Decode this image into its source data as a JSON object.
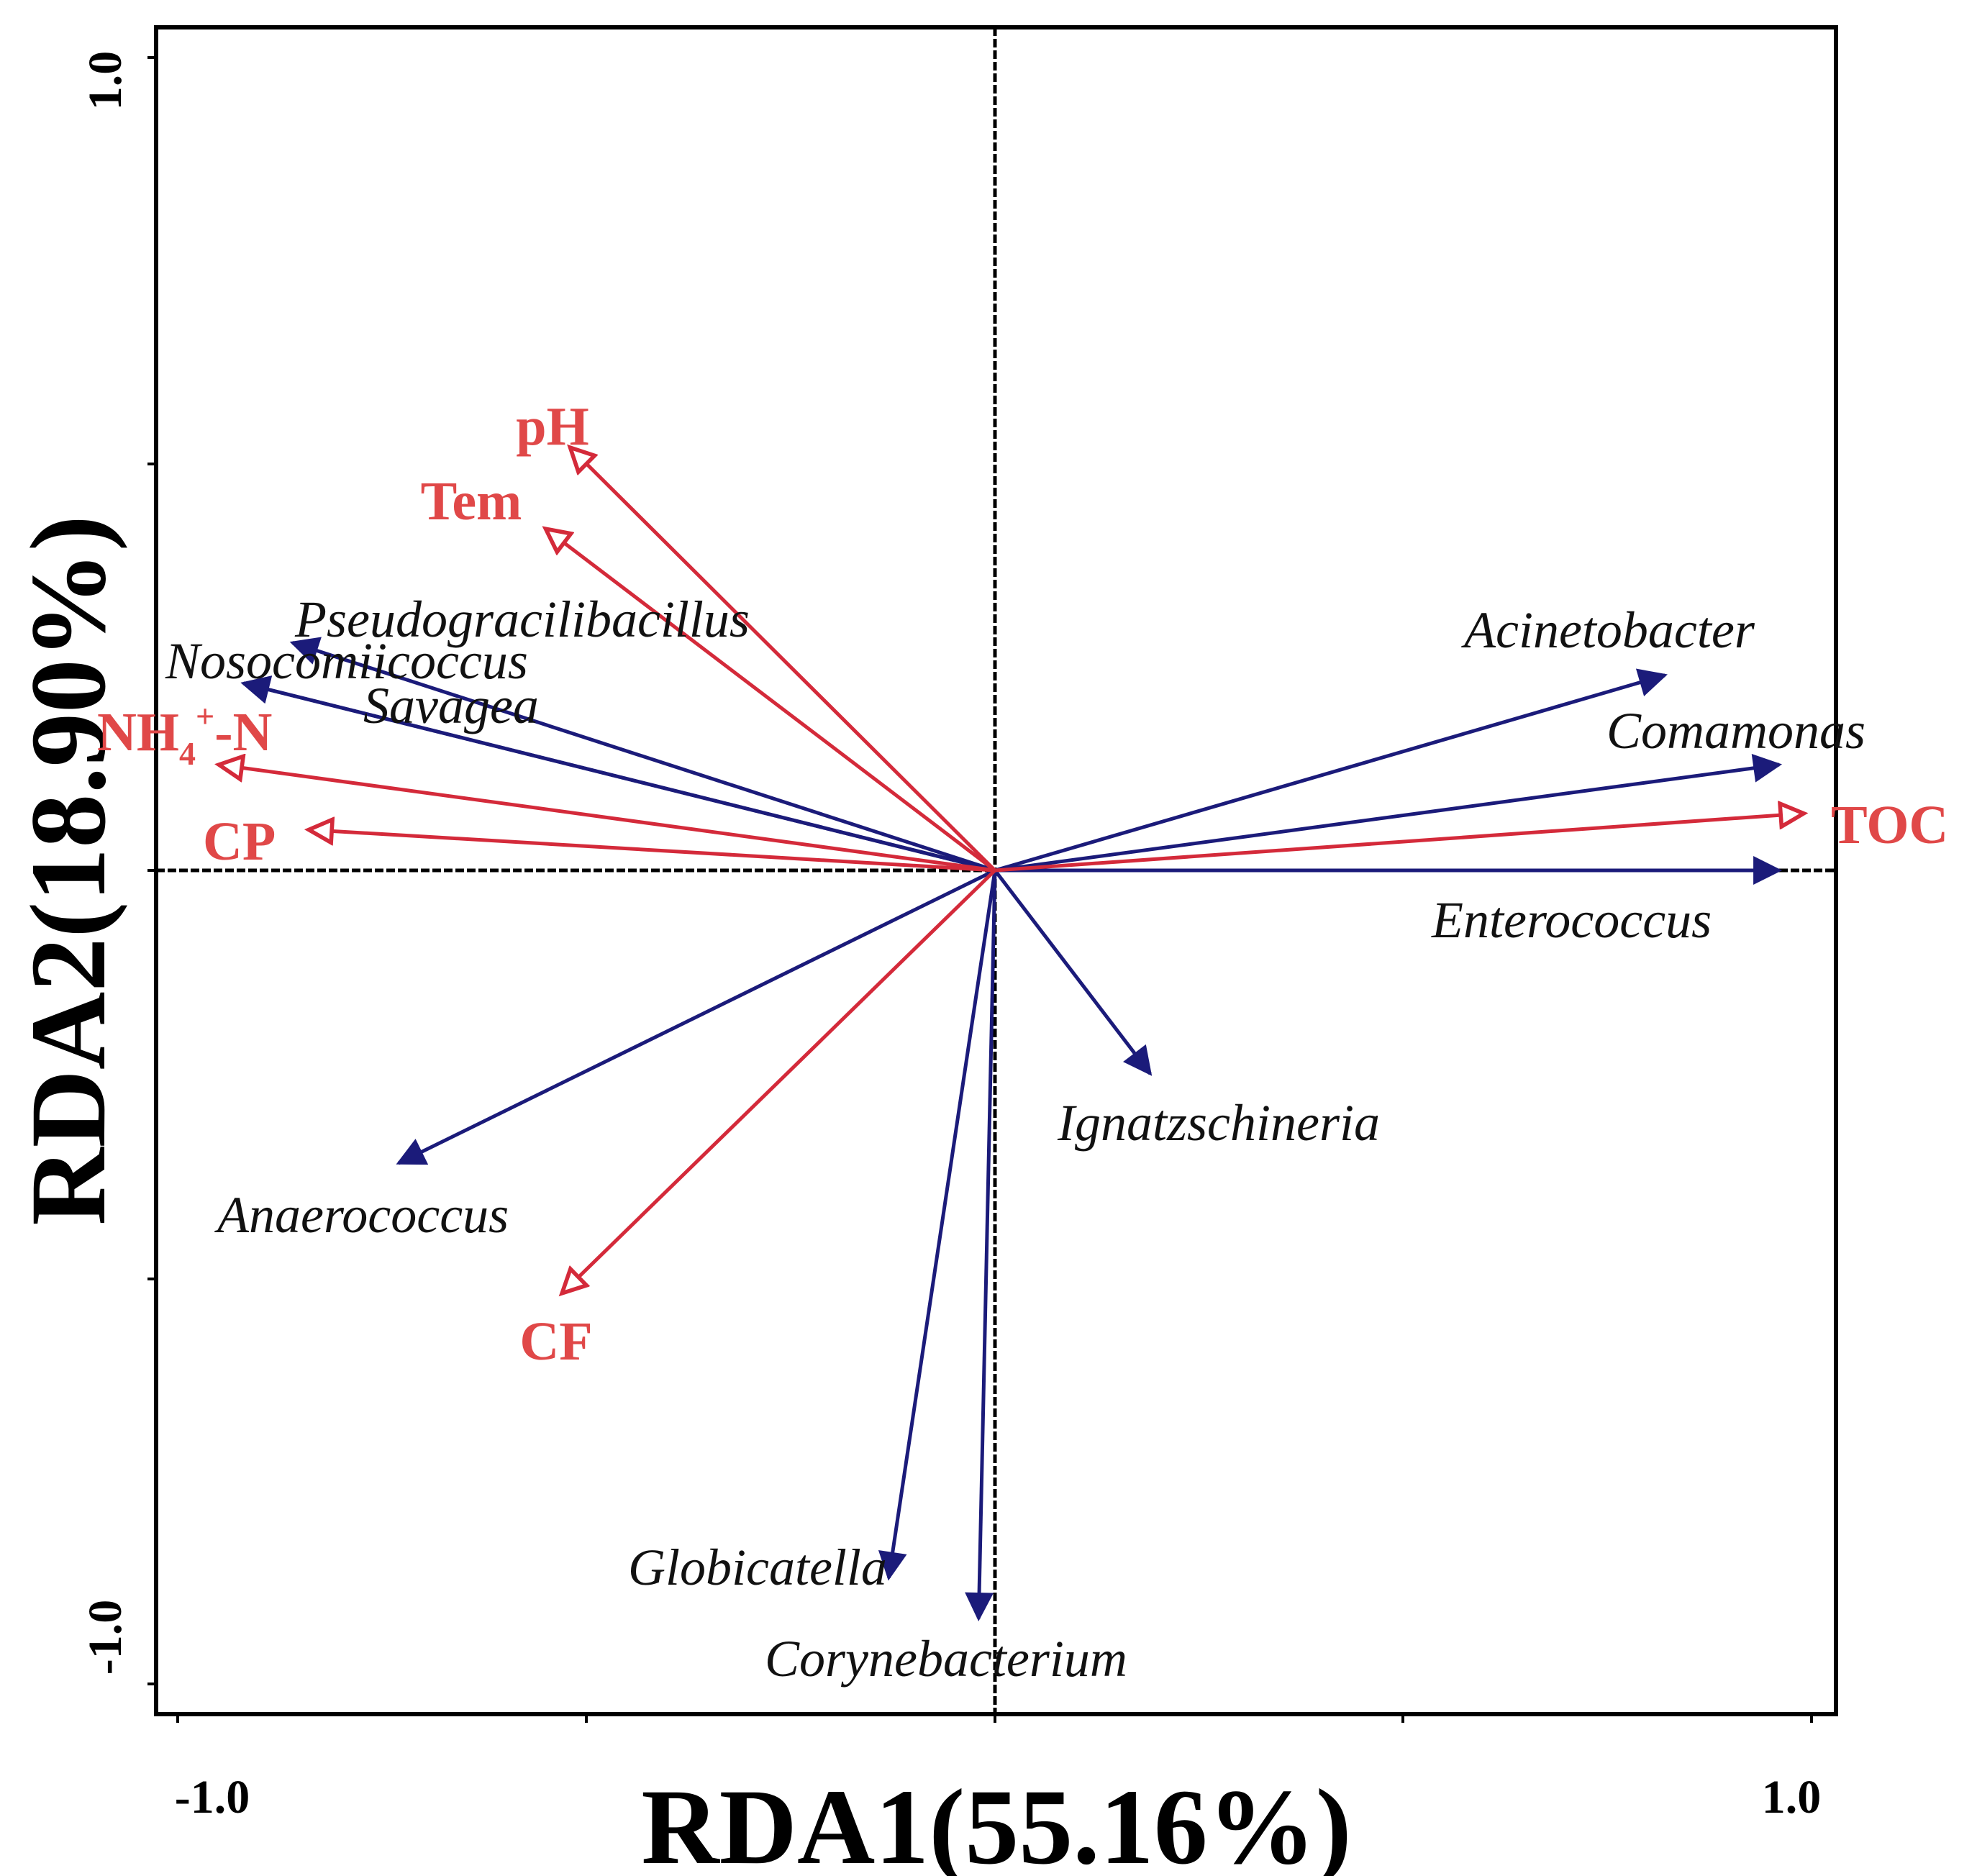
{
  "chart_data": {
    "type": "scatter",
    "subtype": "rda-biplot",
    "xlabel": "RDA1(55.16%)",
    "ylabel": "RDA2(18.90%)",
    "xlim": [
      -1.02,
      1.03
    ],
    "ylim": [
      -1.04,
      1.04
    ],
    "x_tick_labels": [
      "-1.0",
      "1.0"
    ],
    "y_tick_labels": [
      "-1.0",
      "1.0"
    ],
    "species_color": "#1b1b7a",
    "env_color": "#d42a3a",
    "env_label_color": "#e04848",
    "species": [
      {
        "name": "Pseudogracilibacillus",
        "x": -0.86,
        "y": 0.28
      },
      {
        "name": "Nosocomiicoccus",
        "x": -0.92,
        "y": 0.23
      },
      {
        "name": "Savagea",
        "x": -0.92,
        "y": 0.23
      },
      {
        "name": "Acinetobacter",
        "x": 0.82,
        "y": 0.24
      },
      {
        "name": "Comamonas",
        "x": 0.96,
        "y": 0.13
      },
      {
        "name": "Enterococcus",
        "x": 0.96,
        "y": 0.0
      },
      {
        "name": "Ignatzschineria",
        "x": 0.19,
        "y": -0.25
      },
      {
        "name": "Anaerococcus",
        "x": -0.73,
        "y": -0.36
      },
      {
        "name": "Globicatella",
        "x": -0.13,
        "y": -0.87
      },
      {
        "name": "Corynebacterium",
        "x": -0.02,
        "y": -0.92
      }
    ],
    "environment": [
      {
        "name": "pH",
        "x": -0.52,
        "y": 0.52
      },
      {
        "name": "Tem",
        "x": -0.55,
        "y": 0.42
      },
      {
        "name": "NH4+-N",
        "x": -0.95,
        "y": 0.13
      },
      {
        "name": "CP",
        "x": -0.84,
        "y": 0.05
      },
      {
        "name": "TOC",
        "x": 0.99,
        "y": 0.07
      },
      {
        "name": "CF",
        "x": -0.53,
        "y": -0.52
      }
    ]
  }
}
